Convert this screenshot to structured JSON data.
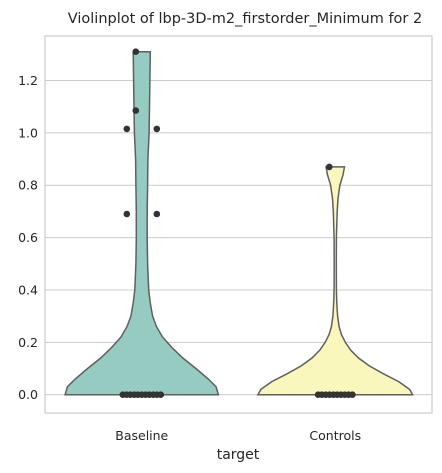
{
  "chart_data": {
    "type": "violin",
    "title": "Violinplot of lbp-3D-m2_firstorder_Minimum for 2",
    "xlabel": "target",
    "ylabel": "",
    "categories": [
      "Baseline",
      "Controls"
    ],
    "ylim": [
      -0.07,
      1.37
    ],
    "yticks": [
      0.0,
      0.2,
      0.4,
      0.6,
      0.8,
      1.0,
      1.2
    ],
    "ytick_labels": [
      "0.0",
      "0.2",
      "0.4",
      "0.6",
      "0.8",
      "1.0",
      "1.2"
    ],
    "grid": true,
    "colors": {
      "Baseline": "#96cbc1",
      "Controls": "#f9f7bb"
    },
    "violins": [
      {
        "category": "Baseline",
        "max": 1.31,
        "profile": [
          [
            0.0,
            0.99
          ],
          [
            0.03,
            0.96
          ],
          [
            0.06,
            0.86
          ],
          [
            0.1,
            0.7
          ],
          [
            0.14,
            0.53
          ],
          [
            0.18,
            0.39
          ],
          [
            0.22,
            0.27
          ],
          [
            0.26,
            0.19
          ],
          [
            0.3,
            0.14
          ],
          [
            0.35,
            0.11
          ],
          [
            0.4,
            0.09
          ],
          [
            0.5,
            0.075
          ],
          [
            0.6,
            0.07
          ],
          [
            0.7,
            0.07
          ],
          [
            0.8,
            0.075
          ],
          [
            0.9,
            0.08
          ],
          [
            1.0,
            0.095
          ],
          [
            1.1,
            0.1
          ],
          [
            1.2,
            0.105
          ],
          [
            1.31,
            0.11
          ]
        ],
        "points": [
          0.0,
          0.0,
          0.0,
          0.0,
          0.0,
          0.0,
          0.0,
          0.0,
          0.0,
          0.0,
          0.0,
          0.69,
          0.69,
          1.015,
          1.015,
          1.085,
          1.31
        ]
      },
      {
        "category": "Controls",
        "max": 0.87,
        "profile": [
          [
            0.0,
            1.0
          ],
          [
            0.02,
            0.96
          ],
          [
            0.05,
            0.82
          ],
          [
            0.08,
            0.62
          ],
          [
            0.11,
            0.44
          ],
          [
            0.14,
            0.3
          ],
          [
            0.17,
            0.2
          ],
          [
            0.2,
            0.13
          ],
          [
            0.23,
            0.08
          ],
          [
            0.26,
            0.05
          ],
          [
            0.3,
            0.03
          ],
          [
            0.35,
            0.02
          ],
          [
            0.4,
            0.015
          ],
          [
            0.5,
            0.013
          ],
          [
            0.6,
            0.015
          ],
          [
            0.7,
            0.025
          ],
          [
            0.75,
            0.035
          ],
          [
            0.8,
            0.06
          ],
          [
            0.84,
            0.1
          ],
          [
            0.87,
            0.12
          ]
        ],
        "points": [
          0.0,
          0.0,
          0.0,
          0.0,
          0.0,
          0.0,
          0.0,
          0.0,
          0.0,
          0.0,
          0.87
        ]
      }
    ]
  }
}
